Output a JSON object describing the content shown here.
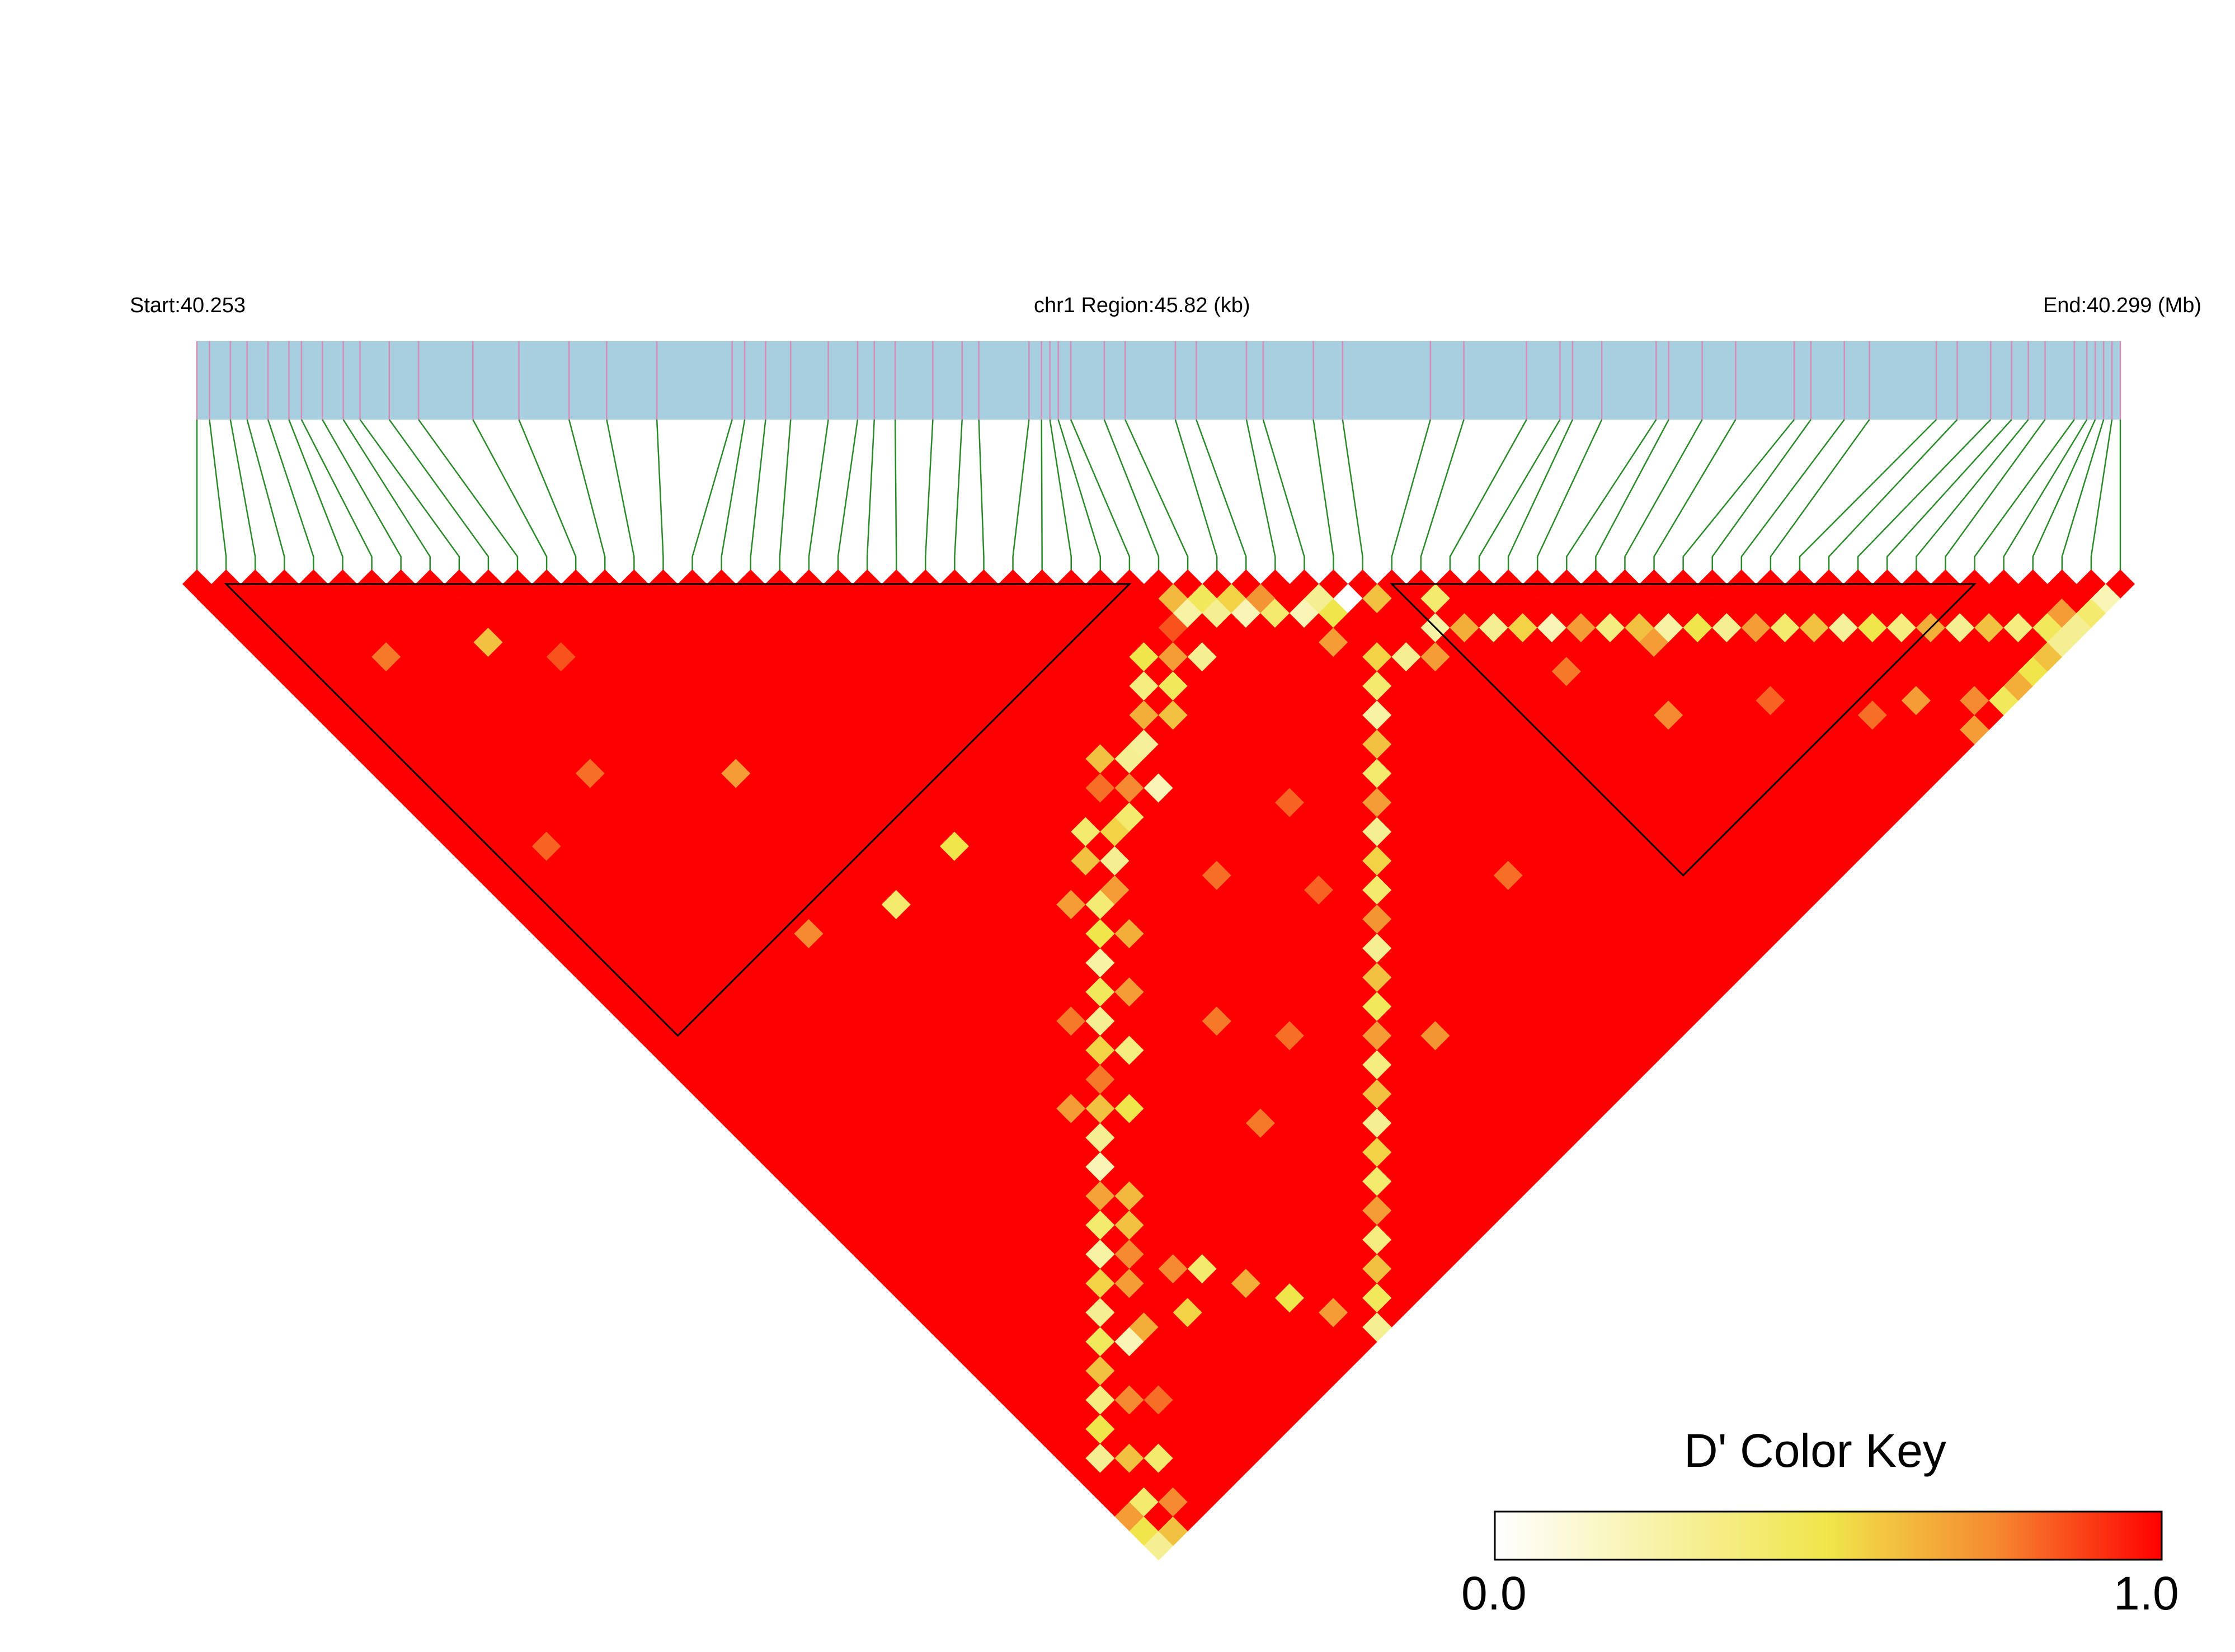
{
  "chart_data": {
    "type": "heatmap",
    "subtype": "linkage-disequilibrium triangle",
    "header": {
      "start_label": "Start:40.253",
      "region_label": "chr1 Region:45.82 (kb)",
      "end_label": "End:40.299 (Mb)"
    },
    "genomic_region": {
      "chromosome": "chr1",
      "start_mb": 40.253,
      "end_mb": 40.299,
      "length_kb": 45.82
    },
    "n_snps": 67,
    "snp_positions_mb": [
      40.253,
      40.2533,
      40.2538,
      40.2542,
      40.2547,
      40.2552,
      40.2555,
      40.256,
      40.2565,
      40.2569,
      40.2576,
      40.2583,
      40.2596,
      40.2607,
      40.2619,
      40.2628,
      40.264,
      40.2658,
      40.2661,
      40.2666,
      40.2672,
      40.2681,
      40.2688,
      40.2692,
      40.2697,
      40.2706,
      40.2713,
      40.2717,
      40.2729,
      40.2732,
      40.2734,
      40.2736,
      40.2739,
      40.2747,
      40.2752,
      40.2764,
      40.2769,
      40.2781,
      40.2785,
      40.2797,
      40.2804,
      40.2825,
      40.2833,
      40.2848,
      40.2856,
      40.2859,
      40.2866,
      40.2879,
      40.2882,
      40.289,
      40.2898,
      40.2912,
      40.2916,
      40.2924,
      40.293,
      40.2946,
      40.2951,
      40.2959,
      40.2964,
      40.2968,
      40.2972,
      40.2979,
      40.2982,
      40.2984,
      40.2986,
      40.2988,
      40.299
    ],
    "ld_blocks_snp_ranges": [
      [
        1,
        32
      ],
      [
        41,
        61
      ]
    ],
    "d_prime_default": 1.0,
    "d_prime_low_cells": [
      [
        33,
        34,
        0.62
      ],
      [
        33,
        35,
        0.25
      ],
      [
        34,
        35,
        0.45
      ],
      [
        34,
        36,
        0.3
      ],
      [
        35,
        36,
        0.55
      ],
      [
        35,
        37,
        0.2
      ],
      [
        36,
        37,
        0.72
      ],
      [
        36,
        38,
        0.4
      ],
      [
        30,
        35,
        0.5
      ],
      [
        29,
        36,
        0.35
      ],
      [
        28,
        37,
        0.65
      ],
      [
        27,
        38,
        0.28
      ],
      [
        31,
        36,
        0.7
      ],
      [
        32,
        37,
        0.3
      ],
      [
        30,
        37,
        0.45
      ],
      [
        29,
        38,
        0.6
      ],
      [
        26,
        38,
        0.3
      ],
      [
        25,
        39,
        0.75
      ],
      [
        24,
        40,
        0.4
      ],
      [
        26,
        40,
        0.2
      ],
      [
        23,
        40,
        0.55
      ],
      [
        22,
        41,
        0.3
      ],
      [
        21,
        42,
        0.7
      ],
      [
        20,
        42,
        0.38
      ],
      [
        24,
        38,
        0.8
      ],
      [
        25,
        37,
        0.6
      ],
      [
        22,
        39,
        0.4
      ],
      [
        19,
        43,
        0.5
      ],
      [
        18,
        44,
        0.25
      ],
      [
        20,
        44,
        0.65
      ],
      [
        17,
        45,
        0.45
      ],
      [
        16,
        46,
        0.3
      ],
      [
        18,
        46,
        0.7
      ],
      [
        15,
        47,
        0.55
      ],
      [
        16,
        48,
        0.35
      ],
      [
        14,
        48,
        0.78
      ],
      [
        13,
        49,
        0.6
      ],
      [
        12,
        50,
        0.3
      ],
      [
        14,
        50,
        0.5
      ],
      [
        11,
        51,
        0.2
      ],
      [
        17,
        35,
        0.5
      ],
      [
        13,
        35,
        0.4
      ],
      [
        10,
        52,
        0.68
      ],
      [
        9,
        53,
        0.4
      ],
      [
        8,
        54,
        0.25
      ],
      [
        10,
        54,
        0.6
      ],
      [
        7,
        55,
        0.55
      ],
      [
        6,
        56,
        0.3
      ],
      [
        8,
        56,
        0.7
      ],
      [
        5,
        57,
        0.45
      ],
      [
        6,
        58,
        0.2
      ],
      [
        4,
        58,
        0.6
      ],
      [
        3,
        59,
        0.35
      ],
      [
        2,
        60,
        0.5
      ],
      [
        4,
        60,
        0.75
      ],
      [
        1,
        61,
        0.3
      ],
      [
        2,
        62,
        0.6
      ],
      [
        3,
        63,
        0.4
      ],
      [
        5,
        61,
        0.8
      ],
      [
        7,
        58,
        0.65
      ],
      [
        9,
        55,
        0.75
      ],
      [
        11,
        53,
        0.62
      ],
      [
        12,
        48,
        0.7
      ],
      [
        15,
        45,
        0.78
      ],
      [
        19,
        41,
        0.7
      ],
      [
        21,
        40,
        0.6
      ],
      [
        38,
        39,
        0.3
      ],
      [
        39,
        40,
        0.0
      ],
      [
        40,
        41,
        0.6
      ],
      [
        38,
        40,
        0.5
      ],
      [
        37,
        39,
        0.2
      ],
      [
        37,
        41,
        0.7
      ],
      [
        42,
        43,
        0.4
      ],
      [
        41,
        44,
        0.25
      ],
      [
        42,
        45,
        0.65
      ],
      [
        43,
        46,
        0.3
      ],
      [
        44,
        47,
        0.55
      ],
      [
        45,
        48,
        0.2
      ],
      [
        46,
        49,
        0.7
      ],
      [
        47,
        50,
        0.35
      ],
      [
        48,
        51,
        0.6
      ],
      [
        49,
        52,
        0.25
      ],
      [
        50,
        53,
        0.5
      ],
      [
        51,
        54,
        0.3
      ],
      [
        52,
        55,
        0.7
      ],
      [
        53,
        56,
        0.4
      ],
      [
        54,
        57,
        0.6
      ],
      [
        55,
        58,
        0.28
      ],
      [
        56,
        59,
        0.5
      ],
      [
        57,
        60,
        0.35
      ],
      [
        58,
        61,
        0.65
      ],
      [
        59,
        62,
        0.3
      ],
      [
        60,
        63,
        0.6
      ],
      [
        61,
        64,
        0.35
      ],
      [
        62,
        65,
        0.45
      ],
      [
        63,
        66,
        0.3
      ],
      [
        38,
        43,
        0.55
      ],
      [
        39,
        44,
        0.3
      ],
      [
        40,
        45,
        0.7
      ],
      [
        37,
        44,
        0.4
      ],
      [
        36,
        45,
        0.25
      ],
      [
        35,
        46,
        0.6
      ],
      [
        34,
        47,
        0.4
      ],
      [
        33,
        48,
        0.7
      ],
      [
        32,
        49,
        0.3
      ],
      [
        31,
        50,
        0.55
      ],
      [
        30,
        51,
        0.4
      ],
      [
        29,
        52,
        0.72
      ],
      [
        28,
        53,
        0.3
      ],
      [
        27,
        54,
        0.6
      ],
      [
        26,
        55,
        0.45
      ],
      [
        25,
        56,
        0.7
      ],
      [
        24,
        57,
        0.35
      ],
      [
        23,
        58,
        0.6
      ],
      [
        22,
        59,
        0.3
      ],
      [
        21,
        60,
        0.55
      ],
      [
        20,
        61,
        0.4
      ],
      [
        19,
        62,
        0.7
      ],
      [
        18,
        63,
        0.35
      ],
      [
        17,
        64,
        0.6
      ],
      [
        16,
        65,
        0.45
      ],
      [
        15,
        66,
        0.3
      ],
      [
        14,
        64,
        0.7
      ],
      [
        13,
        62,
        0.5
      ],
      [
        12,
        60,
        0.65
      ],
      [
        11,
        58,
        0.4
      ],
      [
        10,
        57,
        0.75
      ],
      [
        9,
        59,
        0.55
      ],
      [
        32,
        35,
        0.85
      ],
      [
        8,
        12,
        0.6
      ],
      [
        10,
        15,
        0.85
      ],
      [
        12,
        25,
        0.7
      ],
      [
        7,
        20,
        0.8
      ],
      [
        4,
        9,
        0.78
      ],
      [
        9,
        33,
        0.75
      ],
      [
        3,
        21,
        0.82
      ],
      [
        30,
        45,
        0.82
      ],
      [
        25,
        45,
        0.8
      ],
      [
        20,
        50,
        0.78
      ],
      [
        28,
        49,
        0.82
      ],
      [
        22,
        53,
        0.8
      ],
      [
        35,
        55,
        0.8
      ],
      [
        18,
        55,
        0.78
      ],
      [
        27,
        58,
        0.72
      ],
      [
        44,
        50,
        0.78
      ],
      [
        48,
        52,
        0.7
      ],
      [
        50,
        58,
        0.82
      ],
      [
        46,
        55,
        0.75
      ],
      [
        53,
        62,
        0.8
      ],
      [
        55,
        63,
        0.7
      ],
      [
        57,
        65,
        0.75
      ],
      [
        60,
        66,
        0.5
      ],
      [
        62,
        66,
        0.3
      ],
      [
        61,
        66,
        0.6
      ],
      [
        64,
        66,
        0.4
      ],
      [
        63,
        65,
        0.7
      ],
      [
        65,
        66,
        0.2
      ],
      [
        59,
        66,
        0.65
      ],
      [
        58,
        66,
        0.45
      ],
      [
        56,
        66,
        0.7
      ],
      [
        0,
        66,
        0.3
      ],
      [
        1,
        66,
        0.6
      ],
      [
        0,
        65,
        0.5
      ],
      [
        2,
        65,
        0.75
      ],
      [
        1,
        64,
        0.4
      ],
      [
        0,
        64,
        0.7
      ]
    ],
    "color_key": {
      "title": "D' Color Key",
      "min_label": "0.0",
      "max_label": "1.0",
      "min": 0.0,
      "max": 1.0,
      "stops": [
        [
          0.0,
          "#ffffff"
        ],
        [
          0.5,
          "#f0e54a"
        ],
        [
          0.75,
          "#f58a30"
        ],
        [
          1.0,
          "#ff0000"
        ]
      ]
    },
    "colors": {
      "region_bar": "#a8cfe0",
      "snp_tick": "#d98bb8",
      "connector": "#2a8a2a",
      "block_outline": "#000000"
    }
  }
}
